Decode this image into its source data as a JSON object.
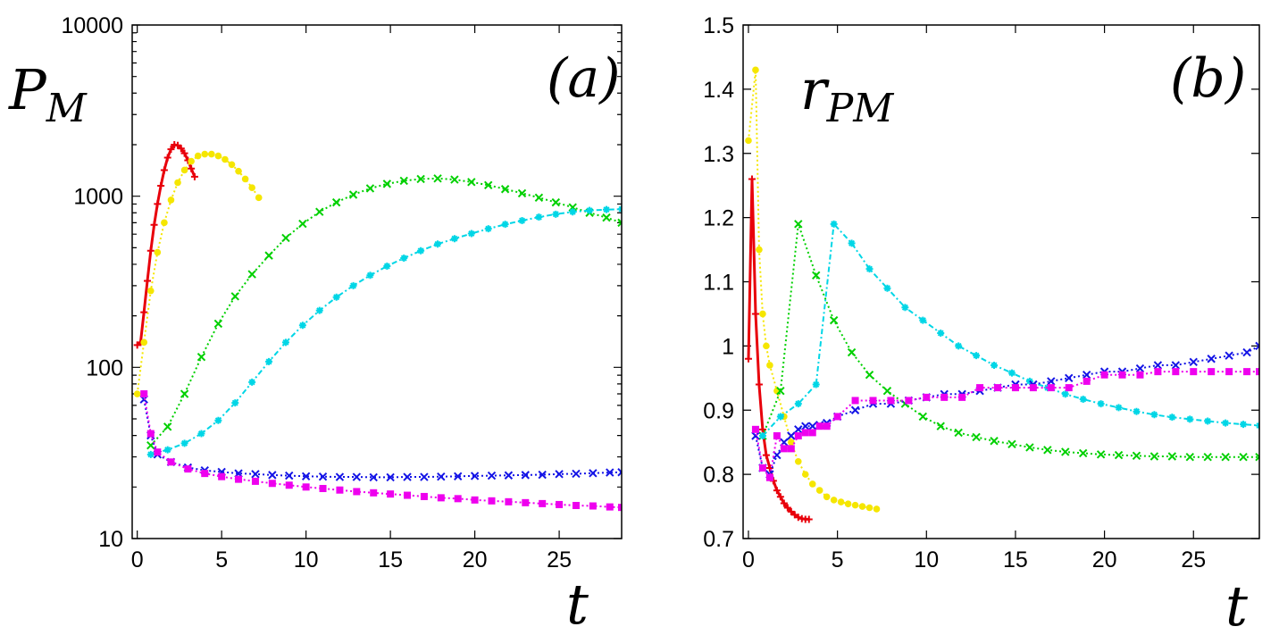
{
  "chart_data": [
    {
      "type": "line",
      "panel_label": "(a)",
      "ylabel": "P_M",
      "xlabel": "t",
      "yscale": "log",
      "xlim": [
        -0.3,
        28.7
      ],
      "ylim": [
        10,
        10000
      ],
      "x_ticks": [
        0,
        5,
        10,
        15,
        20,
        25
      ],
      "y_ticks": [
        10,
        100,
        1000,
        10000
      ],
      "grid": false,
      "series": [
        {
          "color": "#e8000b",
          "marker": "plus",
          "dash": "solid",
          "x": [
            0,
            0.2,
            0.4,
            0.6,
            0.8,
            1.0,
            1.2,
            1.4,
            1.6,
            1.8,
            2.0,
            2.2,
            2.4,
            2.6,
            2.8,
            3.0,
            3.2,
            3.4
          ],
          "y": [
            135,
            140,
            210,
            320,
            480,
            680,
            900,
            1150,
            1420,
            1680,
            1880,
            2000,
            1980,
            1900,
            1780,
            1620,
            1450,
            1300
          ]
        },
        {
          "color": "#f5e600",
          "marker": "dot",
          "dash": "dot",
          "x": [
            0,
            0.4,
            0.8,
            1.2,
            1.6,
            2.0,
            2.4,
            2.8,
            3.2,
            3.6,
            4.0,
            4.4,
            4.8,
            5.2,
            5.6,
            6.0,
            6.4,
            6.8,
            7.2
          ],
          "y": [
            70,
            140,
            280,
            470,
            700,
            950,
            1200,
            1420,
            1600,
            1720,
            1760,
            1760,
            1720,
            1640,
            1530,
            1400,
            1260,
            1120,
            980
          ]
        },
        {
          "color": "#00d000",
          "marker": "x",
          "dash": "dot",
          "x": [
            0.8,
            1.8,
            2.8,
            3.8,
            4.8,
            5.8,
            6.8,
            7.8,
            8.8,
            9.8,
            10.8,
            11.8,
            12.8,
            13.8,
            14.8,
            15.8,
            16.8,
            17.8,
            18.8,
            19.8,
            20.8,
            21.8,
            22.8,
            23.8,
            24.8,
            25.8,
            26.8,
            27.8,
            28.7
          ],
          "y": [
            35,
            45,
            70,
            115,
            180,
            260,
            350,
            450,
            570,
            690,
            810,
            920,
            1020,
            1110,
            1180,
            1230,
            1260,
            1270,
            1250,
            1210,
            1160,
            1100,
            1040,
            980,
            920,
            860,
            800,
            750,
            700
          ]
        },
        {
          "color": "#00d6e6",
          "marker": "star",
          "dash": "dashdot",
          "x": [
            0.8,
            1.8,
            2.8,
            3.8,
            4.8,
            5.8,
            6.8,
            7.8,
            8.8,
            9.8,
            10.8,
            11.8,
            12.8,
            13.8,
            14.8,
            15.8,
            16.8,
            17.8,
            18.8,
            19.8,
            20.8,
            21.8,
            22.8,
            23.8,
            24.8,
            25.8,
            26.8,
            27.8,
            28.7
          ],
          "y": [
            31,
            33,
            36,
            41,
            49,
            62,
            82,
            108,
            140,
            176,
            215,
            257,
            300,
            345,
            390,
            435,
            480,
            525,
            565,
            605,
            645,
            685,
            720,
            755,
            785,
            810,
            825,
            835,
            840
          ]
        },
        {
          "color": "#1414e6",
          "marker": "x",
          "dash": "dot",
          "x": [
            0.4,
            0.8,
            1.2,
            2,
            3,
            4,
            5,
            6,
            7,
            8,
            9,
            10,
            11,
            12,
            13,
            14,
            15,
            16,
            17,
            18,
            19,
            20,
            21,
            22,
            23,
            24,
            25,
            26,
            27,
            28,
            28.7
          ],
          "y": [
            65,
            40,
            31,
            28,
            26,
            25,
            24.5,
            24,
            23.8,
            23.5,
            23.3,
            23.1,
            23,
            22.9,
            22.9,
            22.8,
            22.8,
            22.9,
            22.9,
            23,
            23.1,
            23.2,
            23.3,
            23.4,
            23.5,
            23.6,
            23.8,
            23.9,
            24.1,
            24.3,
            24.4
          ]
        },
        {
          "color": "#ee00ee",
          "marker": "square",
          "dash": "dot",
          "x": [
            0.4,
            0.8,
            1.2,
            2,
            3,
            4,
            5,
            6,
            7,
            8,
            9,
            10,
            11,
            12,
            13,
            14,
            15,
            16,
            17,
            18,
            19,
            20,
            21,
            22,
            23,
            24,
            25,
            26,
            27,
            28,
            28.7
          ],
          "y": [
            70,
            41,
            32,
            28,
            25.5,
            24,
            23,
            22.2,
            21.6,
            21,
            20.5,
            20,
            19.6,
            19.2,
            18.8,
            18.5,
            18.2,
            17.9,
            17.6,
            17.3,
            17.1,
            16.8,
            16.6,
            16.4,
            16.2,
            16,
            15.8,
            15.6,
            15.5,
            15.3,
            15.2
          ]
        }
      ]
    },
    {
      "type": "line",
      "panel_label": "(b)",
      "ylabel": "r_PM",
      "xlabel": "t",
      "xlim": [
        -0.3,
        28.7
      ],
      "ylim": [
        0.7,
        1.5
      ],
      "x_ticks": [
        0,
        5,
        10,
        15,
        20,
        25
      ],
      "y_ticks": [
        0.7,
        0.8,
        0.9,
        1,
        1.1,
        1.2,
        1.3,
        1.4,
        1.5
      ],
      "y_tick_labels": [
        "0.7",
        "0.8",
        "0.9",
        "1",
        "1.1",
        "1.2",
        "1.3",
        "1.4",
        "1.5"
      ],
      "grid": false,
      "series": [
        {
          "color": "#e8000b",
          "marker": "plus",
          "dash": "solid",
          "x": [
            0,
            0.2,
            0.4,
            0.6,
            0.8,
            1.0,
            1.2,
            1.4,
            1.6,
            1.8,
            2.0,
            2.2,
            2.4,
            2.6,
            2.8,
            3.0,
            3.2,
            3.4
          ],
          "y": [
            0.98,
            1.26,
            1.05,
            0.94,
            0.87,
            0.83,
            0.81,
            0.79,
            0.775,
            0.765,
            0.755,
            0.748,
            0.742,
            0.737,
            0.733,
            0.731,
            0.73,
            0.73
          ]
        },
        {
          "color": "#f5e600",
          "marker": "dot",
          "dash": "dot",
          "x": [
            0,
            0.4,
            0.6,
            0.8,
            1.0,
            1.2,
            1.6,
            2.0,
            2.4,
            2.8,
            3.2,
            3.6,
            4.0,
            4.4,
            4.8,
            5.2,
            5.6,
            6.0,
            6.4,
            6.8,
            7.2
          ],
          "y": [
            1.32,
            1.43,
            1.15,
            1.05,
            1.0,
            0.97,
            0.93,
            0.89,
            0.85,
            0.82,
            0.8,
            0.785,
            0.775,
            0.765,
            0.76,
            0.757,
            0.754,
            0.752,
            0.75,
            0.748,
            0.746
          ]
        },
        {
          "color": "#00d000",
          "marker": "x",
          "dash": "dot",
          "x": [
            0.8,
            1.8,
            2.8,
            3.8,
            4.8,
            5.8,
            6.8,
            7.8,
            8.8,
            9.8,
            10.8,
            11.8,
            12.8,
            13.8,
            14.8,
            15.8,
            16.8,
            17.8,
            18.8,
            19.8,
            20.8,
            21.8,
            22.8,
            23.8,
            24.8,
            25.8,
            26.8,
            27.8,
            28.7
          ],
          "y": [
            0.86,
            0.93,
            1.19,
            1.11,
            1.04,
            0.99,
            0.955,
            0.93,
            0.91,
            0.89,
            0.875,
            0.865,
            0.858,
            0.852,
            0.847,
            0.842,
            0.838,
            0.835,
            0.833,
            0.831,
            0.83,
            0.829,
            0.828,
            0.828,
            0.827,
            0.827,
            0.827,
            0.827,
            0.827
          ]
        },
        {
          "color": "#00d6e6",
          "marker": "star",
          "dash": "dashdot",
          "x": [
            0.8,
            1.8,
            2.8,
            3.8,
            4.8,
            5.8,
            6.8,
            7.8,
            8.8,
            9.8,
            10.8,
            11.8,
            12.8,
            13.8,
            14.8,
            15.8,
            16.8,
            17.8,
            18.8,
            19.8,
            20.8,
            21.8,
            22.8,
            23.8,
            24.8,
            25.8,
            26.8,
            27.8,
            28.7
          ],
          "y": [
            0.86,
            0.89,
            0.91,
            0.94,
            1.19,
            1.16,
            1.12,
            1.09,
            1.06,
            1.04,
            1.02,
            1.0,
            0.985,
            0.97,
            0.958,
            0.945,
            0.935,
            0.925,
            0.917,
            0.91,
            0.904,
            0.898,
            0.893,
            0.889,
            0.886,
            0.883,
            0.88,
            0.878,
            0.876
          ]
        },
        {
          "color": "#1414e6",
          "marker": "x",
          "dash": "dot",
          "x": [
            0.4,
            0.8,
            1.2,
            1.6,
            2.0,
            2.4,
            2.8,
            3.2,
            3.6,
            4.0,
            4.4,
            5,
            6,
            7,
            8,
            9,
            10,
            11,
            12,
            13,
            14,
            15,
            16,
            17,
            18,
            19,
            20,
            21,
            22,
            23,
            24,
            25,
            26,
            27,
            28,
            28.7
          ],
          "y": [
            0.86,
            0.81,
            0.8,
            0.83,
            0.85,
            0.86,
            0.87,
            0.875,
            0.875,
            0.877,
            0.88,
            0.89,
            0.9,
            0.91,
            0.91,
            0.915,
            0.92,
            0.925,
            0.925,
            0.93,
            0.935,
            0.94,
            0.94,
            0.945,
            0.95,
            0.955,
            0.96,
            0.96,
            0.965,
            0.97,
            0.97,
            0.975,
            0.98,
            0.985,
            0.99,
            1.0
          ]
        },
        {
          "color": "#ee00ee",
          "marker": "square",
          "dash": "dot",
          "x": [
            0.4,
            0.8,
            1.2,
            1.6,
            2.0,
            2.4,
            2.8,
            3.2,
            3.6,
            4.0,
            4.4,
            5,
            6,
            7,
            8,
            9,
            10,
            11,
            12,
            13,
            14,
            15,
            16,
            17,
            18,
            19,
            20,
            21,
            22,
            23,
            24,
            25,
            26,
            27,
            28,
            28.7
          ],
          "y": [
            0.87,
            0.81,
            0.795,
            0.86,
            0.84,
            0.84,
            0.86,
            0.865,
            0.865,
            0.875,
            0.875,
            0.89,
            0.915,
            0.915,
            0.915,
            0.915,
            0.92,
            0.92,
            0.92,
            0.935,
            0.935,
            0.935,
            0.935,
            0.935,
            0.935,
            0.945,
            0.955,
            0.955,
            0.955,
            0.96,
            0.96,
            0.96,
            0.96,
            0.96,
            0.96,
            0.96
          ]
        }
      ]
    }
  ]
}
